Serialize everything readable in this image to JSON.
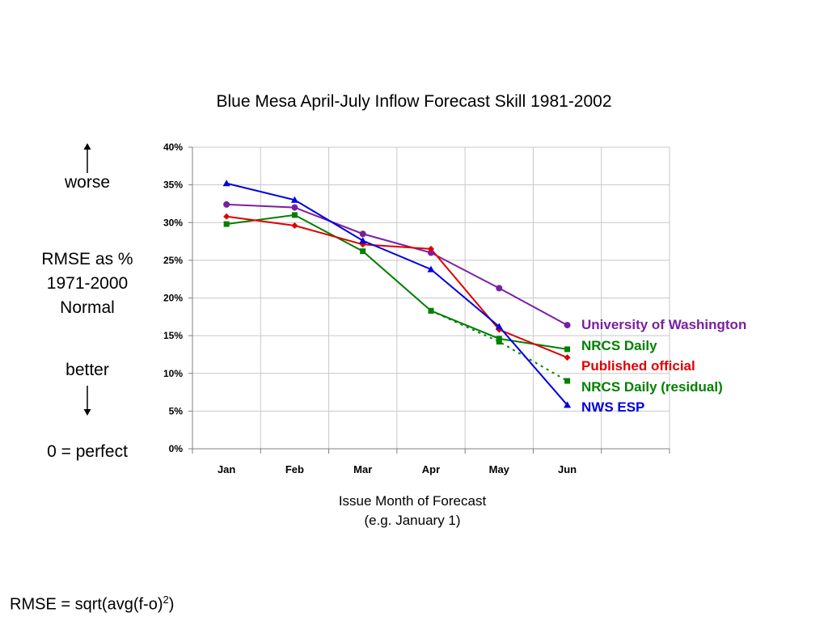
{
  "chart_data": {
    "type": "line",
    "title": "Blue Mesa April-July Inflow Forecast Skill 1981-2002",
    "xlabel": "Issue Month of Forecast",
    "xlabel_sub": "(e.g. January 1)",
    "categories": [
      "Jan",
      "Feb",
      "Mar",
      "Apr",
      "May",
      "Jun"
    ],
    "yticks": [
      "0%",
      "5%",
      "10%",
      "15%",
      "20%",
      "25%",
      "30%",
      "35%",
      "40%"
    ],
    "ylim": [
      0,
      40
    ],
    "grid": true,
    "legend_position": "right",
    "series": [
      {
        "name": "University of Washington",
        "color": "#7b1fa2",
        "marker": "circle",
        "dashed": false,
        "values": [
          32.4,
          32.0,
          28.5,
          26.0,
          21.3,
          16.4
        ]
      },
      {
        "name": "NRCS Daily",
        "color": "#008000",
        "marker": "square",
        "dashed": false,
        "values": [
          29.8,
          31.0,
          26.2,
          18.3,
          14.6,
          13.2
        ]
      },
      {
        "name": "Published official",
        "color": "#e00000",
        "marker": "diamond",
        "dashed": false,
        "values": [
          30.8,
          29.6,
          27.1,
          26.5,
          15.8,
          12.1
        ]
      },
      {
        "name": "NRCS Daily (residual)",
        "color": "#008000",
        "marker": "square",
        "dashed": true,
        "values": [
          null,
          null,
          null,
          18.3,
          14.2,
          9.0
        ]
      },
      {
        "name": "NWS ESP",
        "color": "#0000dd",
        "marker": "triangle",
        "dashed": false,
        "values": [
          35.2,
          33.0,
          27.6,
          23.8,
          16.2,
          5.8
        ]
      }
    ]
  },
  "left_panel": {
    "worse": "worse",
    "rmse_line1": "RMSE as %",
    "rmse_line2": "1971-2000",
    "rmse_line3": "Normal",
    "better": "better",
    "perfect": "0 = perfect"
  },
  "formula": {
    "text": "RMSE = sqrt(avg(f-o)",
    "superscript": "2",
    "close": ")"
  }
}
